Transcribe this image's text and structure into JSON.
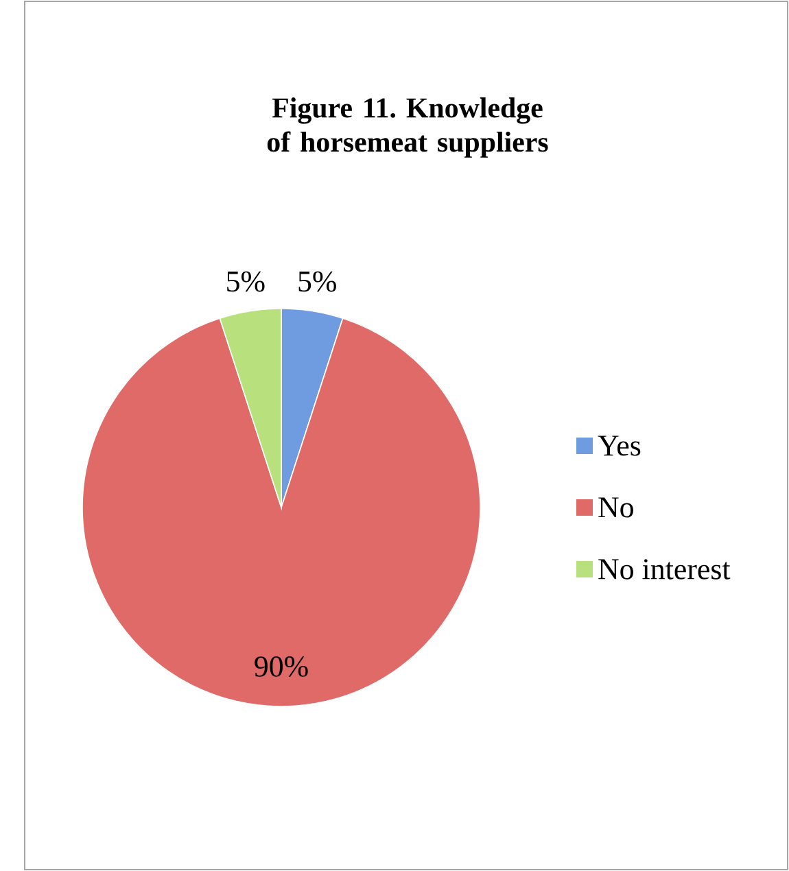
{
  "chart_data": {
    "type": "pie",
    "title": "Figure 11. Knowledge of horsemeat suppliers",
    "categories": [
      "Yes",
      "No",
      "No interest"
    ],
    "values": [
      5,
      90,
      5
    ],
    "value_labels": [
      "5%",
      "90%",
      "5%"
    ],
    "colors": [
      "#6f9be0",
      "#e06a68",
      "#b8e07c"
    ],
    "legend": "right"
  }
}
